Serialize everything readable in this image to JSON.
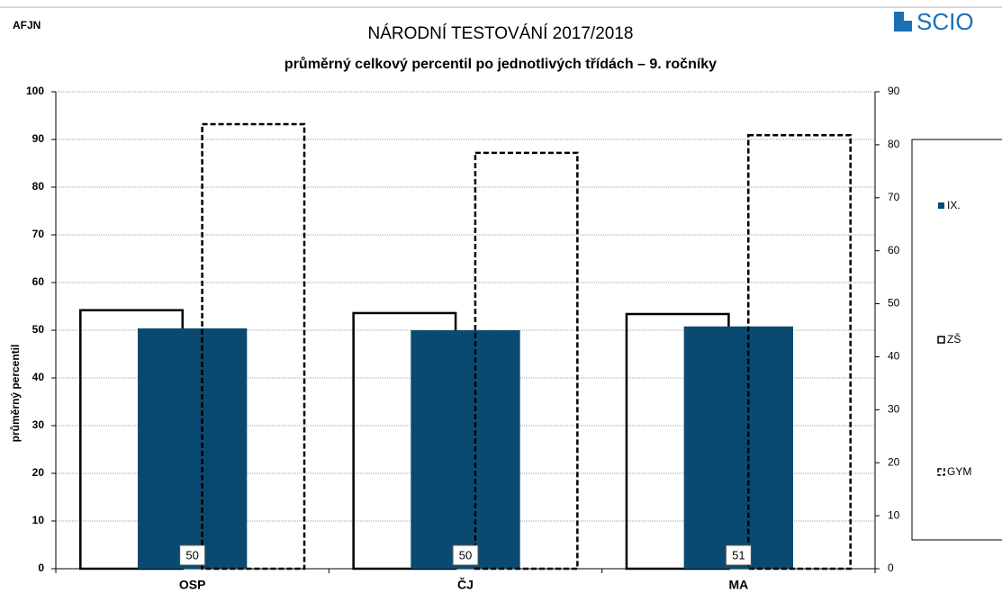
{
  "header": {
    "code": "AFJN",
    "logo": "SCIO"
  },
  "chart_data": {
    "type": "bar",
    "title": "NÁRODNÍ TESTOVÁNÍ 2017/2018",
    "subtitle": "průměrný celkový percentil po jednotlivých třídách – 9. ročníky",
    "ylabel": "průměrný percentil",
    "categories": [
      "OSP",
      "ČJ",
      "MA"
    ],
    "series": [
      {
        "name": "ZŠ",
        "color": "#000000",
        "style": "outline",
        "values": [
          54.2,
          53.6,
          53.4
        ]
      },
      {
        "name": "IX.",
        "color": "#0b4a70",
        "style": "filled",
        "values": [
          50.4,
          50.0,
          50.8
        ],
        "value_labels": [
          "50",
          "50",
          "51"
        ]
      },
      {
        "name": "GYM",
        "color": "#000000",
        "style": "dashed",
        "values": [
          93.2,
          87.2,
          90.9
        ]
      }
    ],
    "legend_order": [
      1,
      0,
      2
    ],
    "ylim": [
      0,
      100
    ],
    "yticks": [
      0,
      10,
      20,
      30,
      40,
      50,
      60,
      70,
      80,
      90,
      100
    ],
    "y2lim": [
      0,
      90
    ],
    "y2ticks": [
      0,
      10,
      20,
      30,
      40,
      50,
      60,
      70,
      80,
      90
    ],
    "grid": true
  }
}
